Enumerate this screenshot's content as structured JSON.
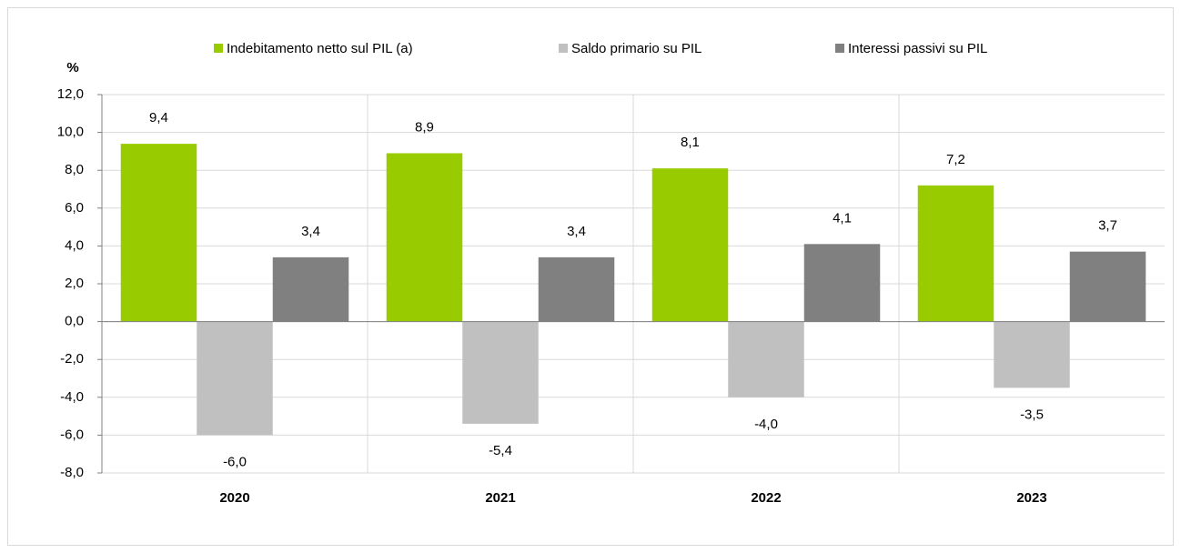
{
  "chart_data": {
    "type": "bar",
    "y_unit": "%",
    "categories": [
      "2020",
      "2021",
      "2022",
      "2023"
    ],
    "series": [
      {
        "name": "Indebitamento netto sul PIL (a)",
        "color": "#99cc00",
        "values": [
          9.4,
          8.9,
          8.1,
          7.2
        ],
        "value_labels": [
          "9,4",
          "8,9",
          "8,1",
          "7,2"
        ]
      },
      {
        "name": "Saldo primario su PIL",
        "color": "#c0c0c0",
        "values": [
          -6.0,
          -5.4,
          -4.0,
          -3.5
        ],
        "value_labels": [
          "-6,0",
          "-5,4",
          "-4,0",
          "-3,5"
        ]
      },
      {
        "name": "Interessi passivi su PIL",
        "color": "#808080",
        "values": [
          3.4,
          3.4,
          4.1,
          3.7
        ],
        "value_labels": [
          "3,4",
          "3,4",
          "4,1",
          "3,7"
        ]
      }
    ],
    "ylim": [
      -8,
      12
    ],
    "yticks": [
      {
        "value": -8,
        "label": "-8,0"
      },
      {
        "value": -6,
        "label": "-6,0"
      },
      {
        "value": -4,
        "label": "-4,0"
      },
      {
        "value": -2,
        "label": "-2,0"
      },
      {
        "value": 0,
        "label": "0,0"
      },
      {
        "value": 2,
        "label": "2,0"
      },
      {
        "value": 4,
        "label": "4,0"
      },
      {
        "value": 6,
        "label": "6,0"
      },
      {
        "value": 8,
        "label": "8,0"
      },
      {
        "value": 10,
        "label": "10,0"
      },
      {
        "value": 12,
        "label": "12,0"
      }
    ],
    "grid": true,
    "legend": "top"
  }
}
